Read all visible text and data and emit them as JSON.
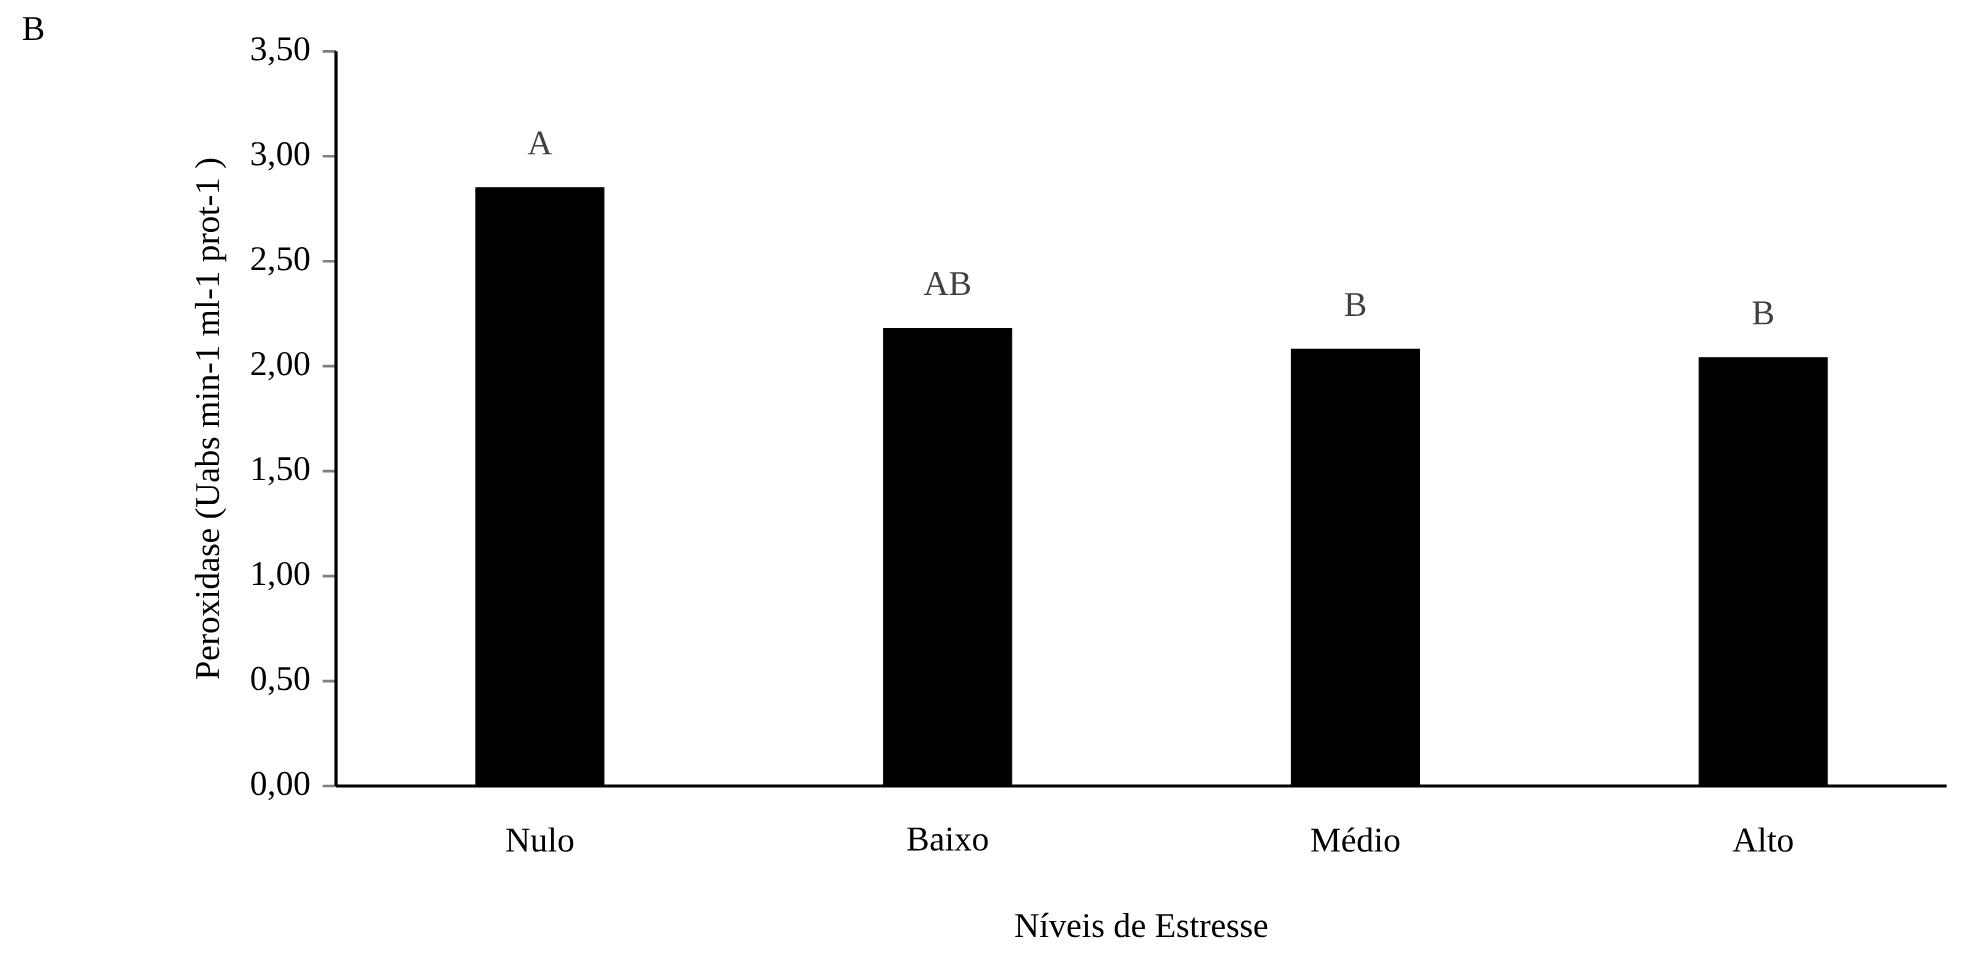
{
  "chart_data": {
    "type": "bar",
    "categories": [
      "Nulo",
      "Baixo",
      "Médio",
      "Alto"
    ],
    "values": [
      2.85,
      2.18,
      2.08,
      2.04
    ],
    "color": "#000000",
    "xlabel": "Níveis de Estresse",
    "ylabel": "Peroxidase (Uabs min-1 ml-1 prot-1 )",
    "ylim": [
      0,
      3.5
    ],
    "yticks": [
      {
        "value": 0,
        "label": "0,00"
      },
      {
        "value": 0.5,
        "label": "0,50"
      },
      {
        "value": 1,
        "label": "1,00"
      },
      {
        "value": 1.5,
        "label": "1,50"
      },
      {
        "value": 2,
        "label": "2,00"
      },
      {
        "value": 2.5,
        "label": "2,50"
      },
      {
        "value": 3,
        "label": "3,00"
      },
      {
        "value": 3.5,
        "label": "3,50"
      }
    ],
    "grid": false,
    "annotations": [
      "B",
      "A",
      "AB",
      "B",
      "B"
    ]
  }
}
